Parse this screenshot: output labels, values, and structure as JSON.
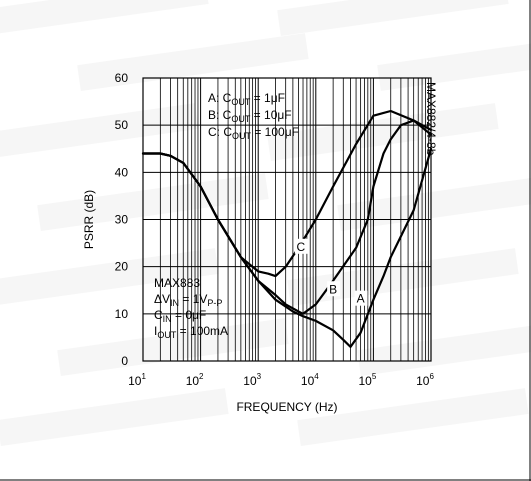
{
  "chart_data": {
    "type": "line",
    "xscale": "log",
    "xlim": [
      10,
      1000000
    ],
    "ylim": [
      0,
      60
    ],
    "xlabel": "FREQUENCY (Hz)",
    "ylabel": "PSRR (dB)",
    "grid": true,
    "x_tick_base": "10",
    "x_tick_exponents": [
      "1",
      "2",
      "3",
      "4",
      "5",
      "6"
    ],
    "x_ticks": [
      10,
      100,
      1000,
      10000,
      100000,
      1000000
    ],
    "y_ticks": [
      "0",
      "10",
      "20",
      "30",
      "40",
      "50",
      "60"
    ],
    "legend": [
      {
        "key": "A",
        "pre": "A: C",
        "sub": "OUT",
        "post": " = 1μF"
      },
      {
        "key": "B",
        "pre": "B: C",
        "sub": "OUT",
        "post": " = 10μF"
      },
      {
        "key": "C",
        "pre": "C: C",
        "sub": "OUT",
        "post": " = 100μF"
      }
    ],
    "conditions": [
      {
        "pre": "MAX883",
        "sub": "",
        "post": ""
      },
      {
        "pre": "ΔV",
        "sub": "IN",
        "post": " = 1V",
        "sub2": "P-P"
      },
      {
        "pre": "C",
        "sub": "IN",
        "post": " = 0μF"
      },
      {
        "pre": "I",
        "sub": "OUT",
        "post": " = 100mA"
      }
    ],
    "figure_id": "MAX882/4-8b",
    "series": [
      {
        "name": "A",
        "x": [
          10,
          20,
          30,
          50,
          100,
          200,
          500,
          1000,
          2000,
          4000,
          6000,
          10000,
          20000,
          30000,
          40000,
          60000,
          100000,
          150000,
          200000,
          500000,
          1000000
        ],
        "y": [
          44,
          44,
          43.5,
          42,
          37,
          30,
          22,
          17,
          13,
          10.5,
          9.5,
          8.5,
          6.5,
          4.5,
          3,
          6,
          13,
          18,
          22,
          32,
          45
        ]
      },
      {
        "name": "B",
        "x": [
          10,
          20,
          30,
          50,
          100,
          200,
          500,
          1000,
          2000,
          3000,
          5000,
          6000,
          10000,
          20000,
          50000,
          80000,
          100000,
          150000,
          200000,
          300000,
          500000,
          1000000
        ],
        "y": [
          44,
          44,
          43.5,
          42,
          37,
          30,
          22,
          17,
          14,
          12,
          10.5,
          10,
          12,
          17,
          24,
          30,
          37,
          44,
          47,
          50,
          51,
          49
        ]
      },
      {
        "name": "C",
        "x": [
          10,
          20,
          30,
          50,
          100,
          200,
          500,
          1000,
          1500,
          2000,
          3000,
          5000,
          10000,
          20000,
          50000,
          100000,
          200000,
          500000,
          1000000
        ],
        "y": [
          44,
          44,
          43.5,
          42,
          37,
          30,
          22,
          19,
          18.5,
          18,
          20,
          24,
          30,
          37,
          46,
          52,
          53,
          51,
          48
        ]
      }
    ],
    "curve_labels": [
      {
        "text": "C",
        "x": 5500,
        "y": 24
      },
      {
        "text": "B",
        "x": 20000,
        "y": 15
      },
      {
        "text": "A",
        "x": 60000,
        "y": 13
      }
    ]
  }
}
